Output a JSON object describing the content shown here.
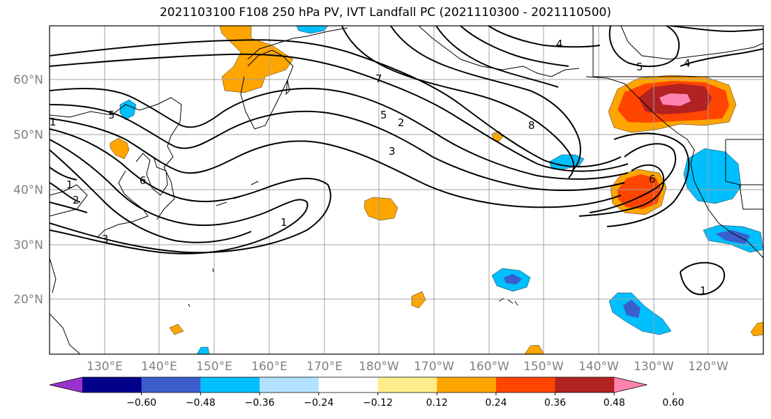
{
  "title": "2021103100 F108 250 hPa PV, IVT Landfall PC (2021110300 - 2021110500)",
  "map": {
    "lat_labels": [
      "60°N",
      "50°N",
      "40°N",
      "30°N",
      "20°N"
    ],
    "lon_labels": [
      "130°E",
      "140°E",
      "150°E",
      "160°E",
      "170°E",
      "180°W",
      "170°W",
      "160°W",
      "150°W",
      "140°W",
      "130°W",
      "120°W"
    ],
    "contour_labels": [
      "4",
      "5",
      "4",
      "7",
      "5",
      "2",
      "8",
      "3",
      "6",
      "1",
      "1",
      "2",
      "1",
      "5",
      "6",
      "3",
      "1"
    ],
    "shading_colors": [
      "#9932cc",
      "#00008b",
      "#3a5fcd",
      "#00bfff",
      "#b2e2ff",
      "#ffffff",
      "#ffec8b",
      "#ffa500",
      "#ff4500",
      "#b22222",
      "#ff83b0"
    ]
  },
  "colorbar": {
    "ticks": [
      "−0.60",
      "−0.48",
      "−0.36",
      "−0.24",
      "−0.12",
      "0.12",
      "0.24",
      "0.36",
      "0.48",
      "0.60"
    ],
    "colors": [
      "#9932cc",
      "#00008b",
      "#3a5fcd",
      "#00bfff",
      "#b2e2ff",
      "#ffffff",
      "#ffec8b",
      "#ffa500",
      "#ff4500",
      "#b22222",
      "#ff83b0"
    ]
  }
}
